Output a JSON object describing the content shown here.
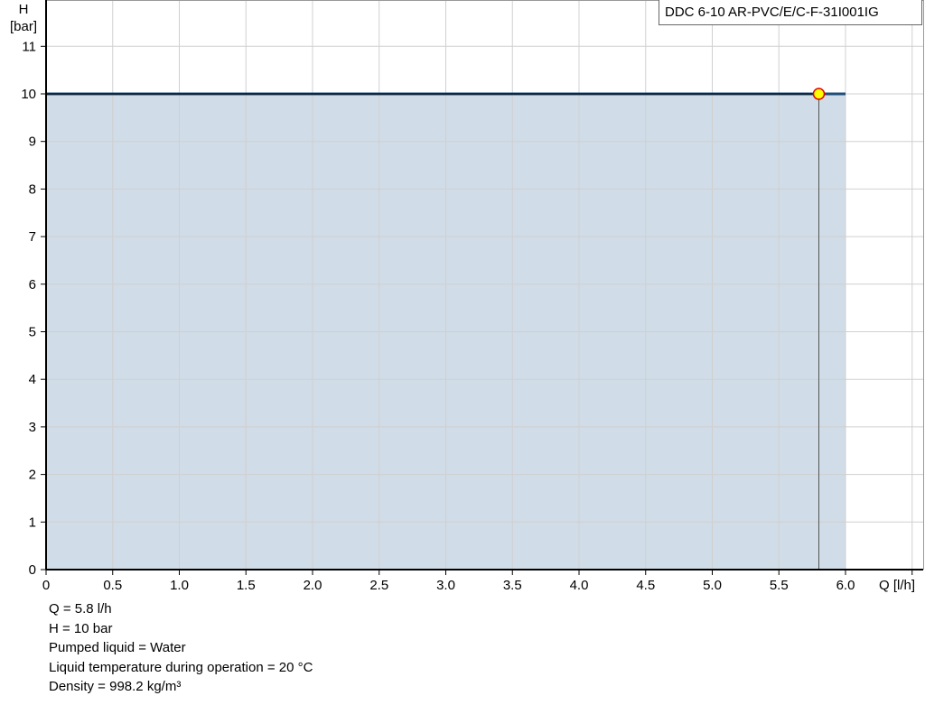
{
  "chart_data": {
    "type": "area",
    "title": "",
    "legend_label": "DDC 6-10 AR-PVC/E/C-F-31I001IG",
    "xlabel": "Q [l/h]",
    "ylabel_line1": "H",
    "ylabel_line2": "[bar]",
    "xlim": [
      0,
      6.5
    ],
    "ylim": [
      0,
      12
    ],
    "x_ticks": [
      "0",
      "0.5",
      "1.0",
      "1.5",
      "2.0",
      "2.5",
      "3.0",
      "3.5",
      "4.0",
      "4.5",
      "5.0",
      "5.5",
      "6.0"
    ],
    "y_ticks": [
      "0",
      "1",
      "2",
      "3",
      "4",
      "5",
      "6",
      "7",
      "8",
      "9",
      "10",
      "11"
    ],
    "grid": true,
    "series": [
      {
        "x": [
          0,
          6.0
        ],
        "y": [
          10,
          10
        ],
        "color": "#1f4e79",
        "fill": "#d0dce7"
      }
    ],
    "duty_point": {
      "x": 5.8,
      "y": 10,
      "color": "#ffff00",
      "border": "#e00000"
    }
  },
  "info": [
    "Q = 5.8 l/h",
    "H = 10 bar",
    "Pumped liquid = Water",
    "Liquid temperature during operation = 20 °C",
    "Density = 998.2 kg/m³"
  ]
}
